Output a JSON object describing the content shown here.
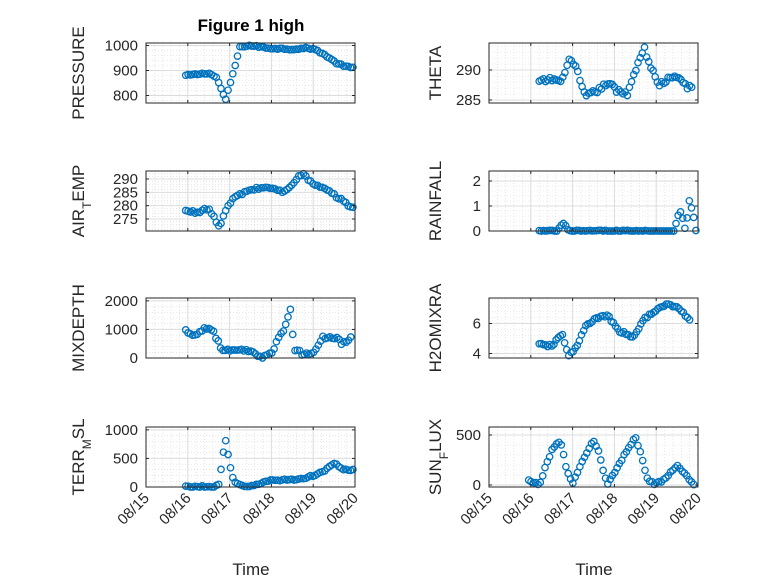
{
  "figure": {
    "title": "Figure 1 high",
    "xlabel": "Time",
    "x_tick_labels": [
      "08/15",
      "08/16",
      "08/17",
      "08/18",
      "08/19",
      "08/20"
    ],
    "marker_color": "#0072BD"
  },
  "chart_data": [
    {
      "type": "scatter",
      "ylabel": "PRESSURE",
      "xlim": [
        0,
        5
      ],
      "ylim": [
        770,
        1010
      ],
      "yticks": [
        800,
        900,
        1000
      ],
      "keys": [
        [
          0.95,
          880
        ],
        [
          1.5,
          890
        ],
        [
          1.7,
          870
        ],
        [
          1.9,
          780
        ],
        [
          2.1,
          900
        ],
        [
          2.25,
          995
        ],
        [
          2.5,
          1000
        ],
        [
          2.9,
          990
        ],
        [
          3.5,
          985
        ],
        [
          3.9,
          990
        ],
        [
          4.1,
          980
        ],
        [
          4.3,
          960
        ],
        [
          4.55,
          930
        ],
        [
          4.8,
          915
        ],
        [
          4.95,
          910
        ]
      ],
      "noise": 3
    },
    {
      "type": "scatter",
      "ylabel": "THETA",
      "xlim": [
        0,
        5
      ],
      "ylim": [
        284.5,
        294.5
      ],
      "yticks": [
        285,
        290
      ],
      "keys": [
        [
          1.2,
          288
        ],
        [
          1.5,
          288.5
        ],
        [
          1.75,
          288
        ],
        [
          1.9,
          292
        ],
        [
          2.1,
          290
        ],
        [
          2.3,
          285.5
        ],
        [
          2.7,
          287
        ],
        [
          2.85,
          288
        ],
        [
          3.05,
          286.5
        ],
        [
          3.3,
          286
        ],
        [
          3.7,
          293.8
        ],
        [
          3.9,
          290
        ],
        [
          4.05,
          287.5
        ],
        [
          4.3,
          288.5
        ],
        [
          4.55,
          288.8
        ],
        [
          4.7,
          287.5
        ],
        [
          4.85,
          286.8
        ]
      ],
      "noise": 0.4
    },
    {
      "type": "scatter",
      "ylabel": "AIR_TEMP",
      "xlim": [
        0,
        5
      ],
      "ylim": [
        270.5,
        293
      ],
      "yticks": [
        275,
        280,
        285,
        290
      ],
      "keys": [
        [
          0.95,
          278
        ],
        [
          1.2,
          277.5
        ],
        [
          1.5,
          279
        ],
        [
          1.75,
          272
        ],
        [
          1.9,
          278
        ],
        [
          2.1,
          283
        ],
        [
          2.5,
          286
        ],
        [
          2.9,
          287
        ],
        [
          3.3,
          285
        ],
        [
          3.6,
          290
        ],
        [
          3.75,
          292
        ],
        [
          4.0,
          288
        ],
        [
          4.3,
          286
        ],
        [
          4.6,
          283
        ],
        [
          4.95,
          279
        ]
      ],
      "noise": 0.5
    },
    {
      "type": "scatter",
      "ylabel": "RAINFALL",
      "xlim": [
        0,
        5
      ],
      "ylim": [
        0,
        2.4
      ],
      "yticks": [
        0,
        1,
        2
      ],
      "keys": [
        [
          1.2,
          0
        ],
        [
          1.65,
          0
        ],
        [
          1.7,
          0.2
        ],
        [
          1.8,
          0.3
        ],
        [
          1.9,
          0
        ],
        [
          4.45,
          0
        ],
        [
          4.5,
          0.6
        ],
        [
          4.6,
          0.8
        ],
        [
          4.7,
          0
        ],
        [
          4.8,
          1.3
        ],
        [
          4.9,
          0.5
        ],
        [
          4.95,
          0
        ]
      ],
      "noise": 0.03
    },
    {
      "type": "scatter",
      "ylabel": "MIXDEPTH",
      "xlim": [
        0,
        5
      ],
      "ylim": [
        0,
        2100
      ],
      "yticks": [
        0,
        1000,
        2000
      ],
      "keys": [
        [
          0.95,
          950
        ],
        [
          1.2,
          800
        ],
        [
          1.4,
          1050
        ],
        [
          1.6,
          1000
        ],
        [
          1.8,
          300
        ],
        [
          2.0,
          250
        ],
        [
          2.5,
          250
        ],
        [
          2.6,
          100
        ],
        [
          2.8,
          50
        ],
        [
          3.0,
          200
        ],
        [
          3.3,
          1000
        ],
        [
          3.45,
          1700
        ],
        [
          3.55,
          300
        ],
        [
          3.8,
          100
        ],
        [
          4.0,
          200
        ],
        [
          4.2,
          700
        ],
        [
          4.5,
          750
        ],
        [
          4.7,
          500
        ],
        [
          4.9,
          700
        ]
      ],
      "noise": 60
    },
    {
      "type": "scatter",
      "ylabel": "H2OMIXRA",
      "xlim": [
        0,
        5
      ],
      "ylim": [
        3.7,
        7.7
      ],
      "yticks": [
        4,
        6
      ],
      "keys": [
        [
          1.2,
          4.6
        ],
        [
          1.5,
          4.5
        ],
        [
          1.75,
          5.3
        ],
        [
          1.9,
          3.9
        ],
        [
          2.1,
          4.4
        ],
        [
          2.3,
          5.8
        ],
        [
          2.6,
          6.4
        ],
        [
          2.85,
          6.5
        ],
        [
          3.1,
          5.5
        ],
        [
          3.3,
          5.3
        ],
        [
          3.45,
          5.0
        ],
        [
          3.7,
          6.3
        ],
        [
          4.0,
          6.9
        ],
        [
          4.3,
          7.3
        ],
        [
          4.55,
          7.0
        ],
        [
          4.8,
          6.2
        ]
      ],
      "noise": 0.08
    },
    {
      "type": "scatter",
      "ylabel": "TERR_MSL",
      "xlim": [
        0,
        5
      ],
      "ylim": [
        0,
        1050
      ],
      "yticks": [
        0,
        500,
        1000
      ],
      "keys": [
        [
          0.95,
          5
        ],
        [
          1.65,
          5
        ],
        [
          1.75,
          60
        ],
        [
          1.9,
          850
        ],
        [
          2.0,
          400
        ],
        [
          2.1,
          80
        ],
        [
          2.3,
          20
        ],
        [
          2.6,
          20
        ],
        [
          2.8,
          80
        ],
        [
          3.0,
          120
        ],
        [
          3.5,
          130
        ],
        [
          3.8,
          150
        ],
        [
          4.0,
          200
        ],
        [
          4.3,
          300
        ],
        [
          4.5,
          420
        ],
        [
          4.7,
          300
        ],
        [
          4.95,
          300
        ]
      ],
      "noise": 15
    },
    {
      "type": "scatter",
      "ylabel": "SUN_FLUX",
      "xlim": [
        0,
        5
      ],
      "ylim": [
        -20,
        580
      ],
      "yticks": [
        0,
        500
      ],
      "keys": [
        [
          0.95,
          40
        ],
        [
          1.2,
          5
        ],
        [
          1.5,
          350
        ],
        [
          1.65,
          420
        ],
        [
          1.75,
          400
        ],
        [
          1.85,
          150
        ],
        [
          2.0,
          10
        ],
        [
          2.3,
          300
        ],
        [
          2.5,
          450
        ],
        [
          2.65,
          300
        ],
        [
          2.75,
          100
        ],
        [
          2.85,
          10
        ],
        [
          3.3,
          350
        ],
        [
          3.5,
          480
        ],
        [
          3.65,
          300
        ],
        [
          3.8,
          40
        ],
        [
          4.0,
          10
        ],
        [
          4.2,
          50
        ],
        [
          4.5,
          200
        ],
        [
          4.7,
          100
        ],
        [
          4.9,
          0
        ]
      ],
      "noise": 12
    }
  ]
}
